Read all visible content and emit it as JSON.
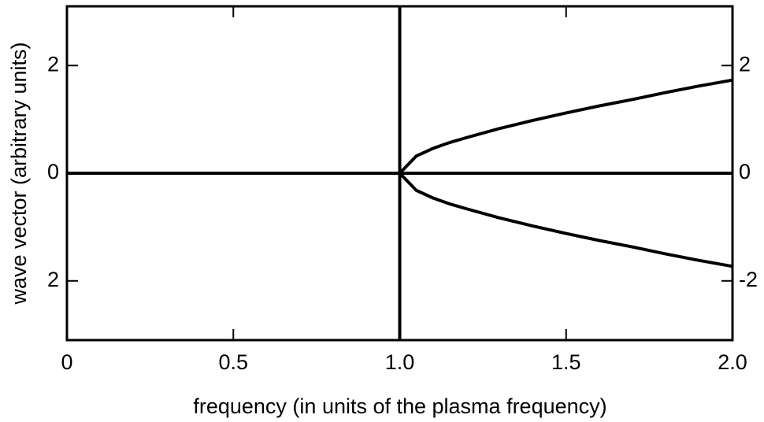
{
  "chart_data": {
    "type": "line",
    "xlabel": "frequency (in units of the plasma frequency)",
    "ylabel": "wave vector (arbitrary units)",
    "xlim": [
      0,
      2
    ],
    "ylim": [
      -3.1,
      3.1
    ],
    "y2lim": [
      -3.1,
      3.1
    ],
    "xticks": [
      0,
      0.5,
      {
        "value": 1,
        "label": "1.0"
      },
      1.5,
      {
        "value": 2,
        "label": "2.0"
      }
    ],
    "yticks": [
      {
        "value": -2,
        "label": "2"
      },
      0,
      {
        "value": 2,
        "label": "2"
      }
    ],
    "y2ticks": [
      -2,
      0,
      2
    ],
    "color": "#000000",
    "series": [
      {
        "x": [
          0,
          2
        ],
        "values": [
          0,
          0
        ]
      },
      {
        "x": [
          1,
          1
        ],
        "values": [
          -3.1,
          3.1
        ]
      },
      {
        "x": [
          1,
          1.05,
          1.1,
          1.15,
          1.2,
          1.3,
          1.4,
          1.5,
          1.6,
          1.7,
          1.8,
          1.9,
          2
        ],
        "values": [
          0,
          0.32,
          0.46,
          0.57,
          0.66,
          0.83,
          0.98,
          1.12,
          1.25,
          1.37,
          1.5,
          1.62,
          1.73
        ]
      },
      {
        "x": [
          1,
          1.05,
          1.1,
          1.15,
          1.2,
          1.3,
          1.4,
          1.5,
          1.6,
          1.7,
          1.8,
          1.9,
          2
        ],
        "values": [
          0,
          -0.32,
          -0.46,
          -0.57,
          -0.66,
          -0.83,
          -0.98,
          -1.12,
          -1.25,
          -1.37,
          -1.5,
          -1.62,
          -1.73
        ]
      }
    ]
  }
}
